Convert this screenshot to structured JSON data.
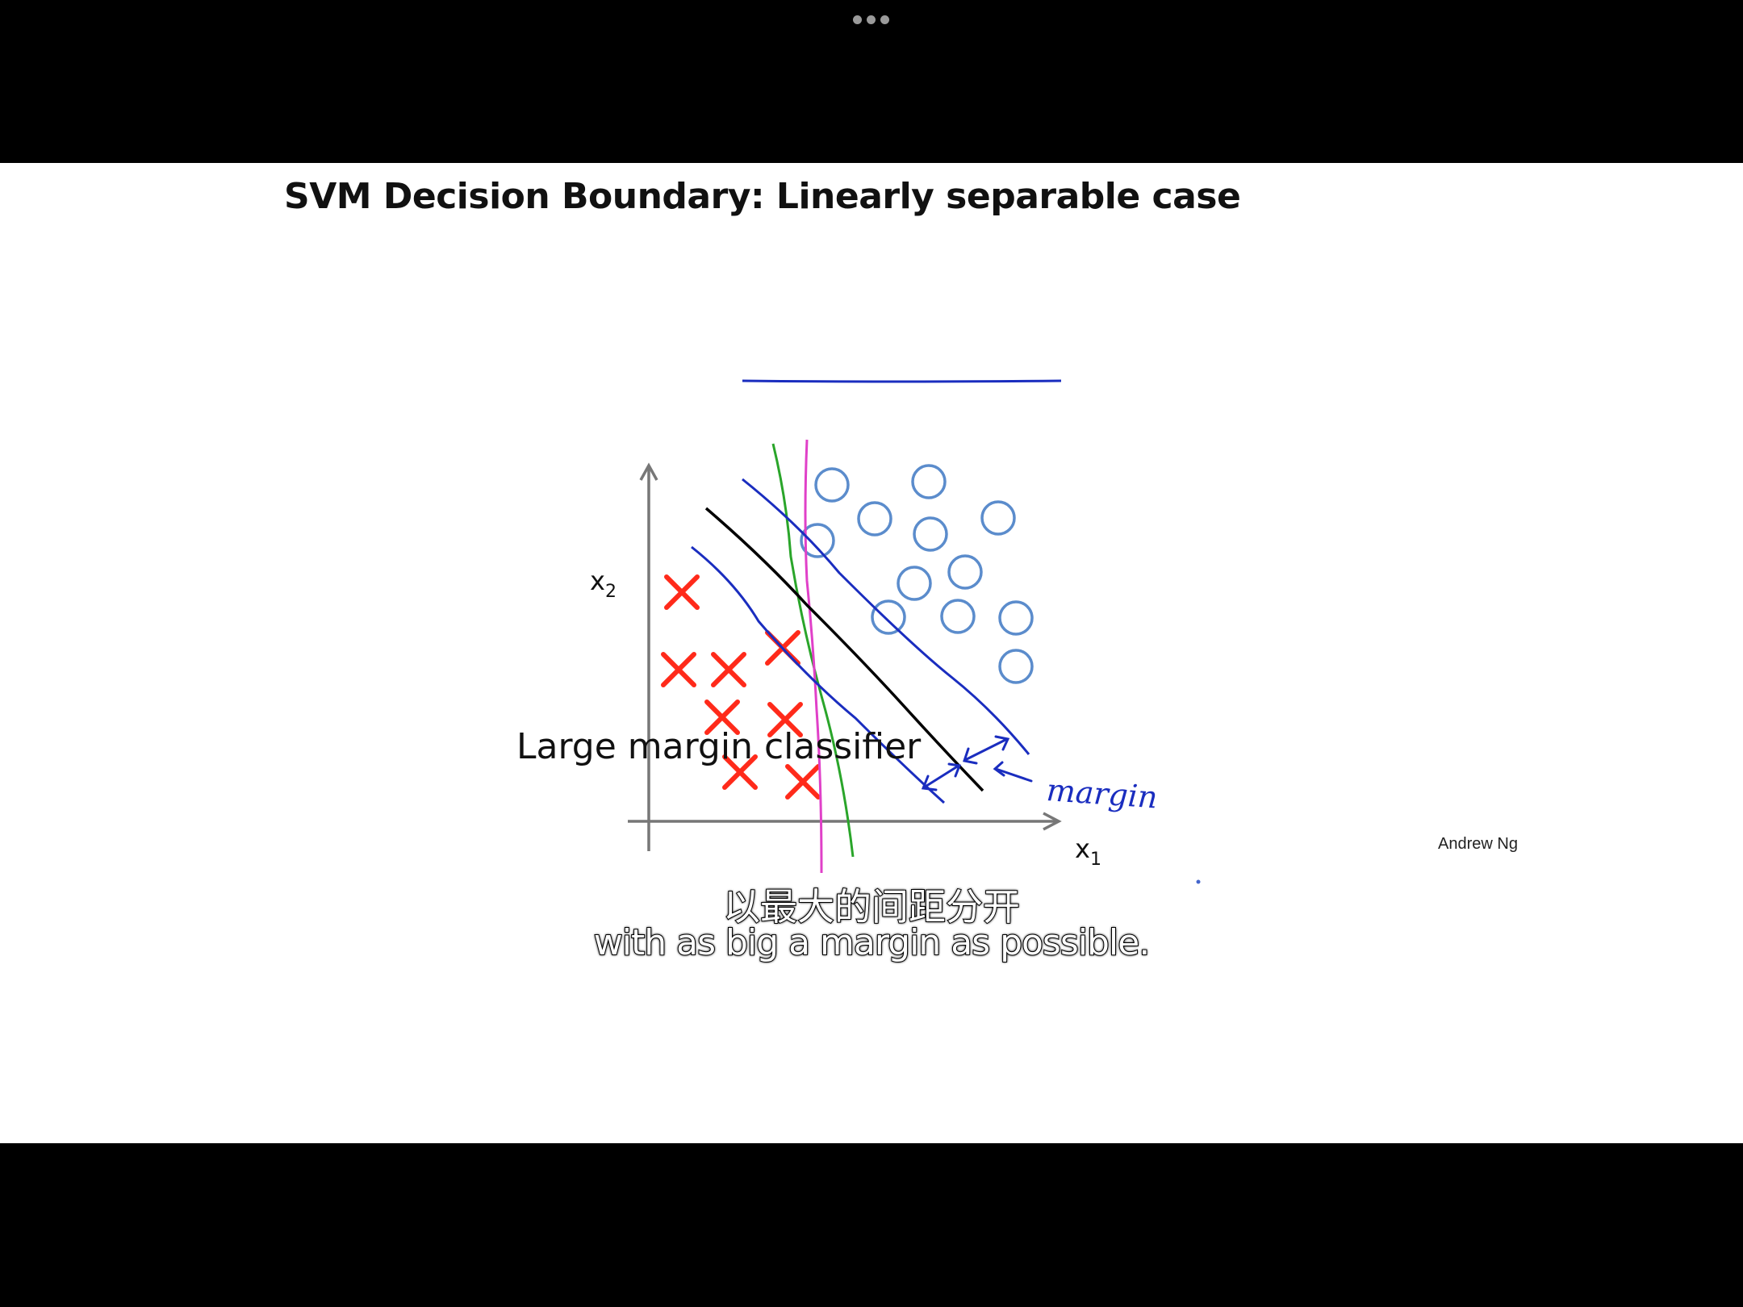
{
  "player": {
    "more_icon": "more-dots-icon"
  },
  "slide": {
    "title": "SVM Decision Boundary: Linearly separable case",
    "caption": "Large margin classifier",
    "author": "Andrew Ng"
  },
  "diagram": {
    "x_axis_label": "x",
    "x_axis_sub": "1",
    "y_axis_label": "x",
    "y_axis_sub": "2",
    "margin_annotation": "margin",
    "colors": {
      "cross": "#ff2a1a",
      "circle": "#5b8ccc",
      "margin_lines": "#1a2dbf",
      "decision_line": "#000000",
      "green_line": "#2aa52a",
      "magenta_line": "#e040c8",
      "axes": "#777777",
      "title_underline": "#1a2dbf"
    }
  },
  "subtitles": {
    "chinese": "以最大的间距分开",
    "english": "with as big a margin as possible."
  }
}
